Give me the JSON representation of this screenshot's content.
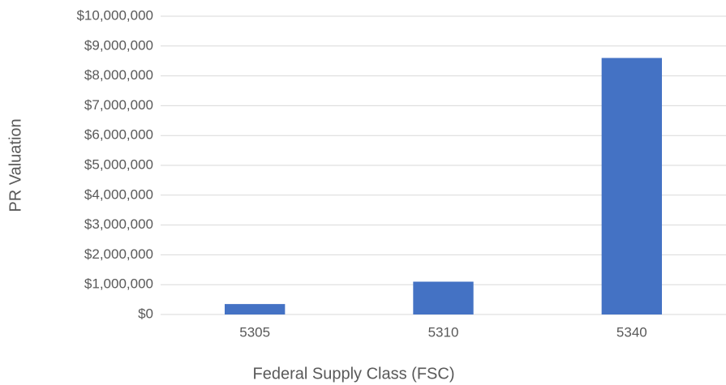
{
  "chart_data": {
    "type": "bar",
    "x_label": "Federal Supply Class (FSC)",
    "y_label": "PR Valuation",
    "categories": [
      "5305",
      "5310",
      "5340"
    ],
    "values": [
      350000,
      1100000,
      8600000
    ],
    "color": "#4472c4",
    "ylim": [
      0,
      10000000
    ],
    "yticks": [
      {
        "value": 0,
        "label": "$0"
      },
      {
        "value": 1000000,
        "label": "$1,000,000"
      },
      {
        "value": 2000000,
        "label": "$2,000,000"
      },
      {
        "value": 3000000,
        "label": "$3,000,000"
      },
      {
        "value": 4000000,
        "label": "$4,000,000"
      },
      {
        "value": 5000000,
        "label": "$5,000,000"
      },
      {
        "value": 6000000,
        "label": "$6,000,000"
      },
      {
        "value": 7000000,
        "label": "$7,000,000"
      },
      {
        "value": 8000000,
        "label": "$8,000,000"
      },
      {
        "value": 9000000,
        "label": "$9,000,000"
      },
      {
        "value": 10000000,
        "label": "$10,000,000"
      }
    ],
    "grid": true
  }
}
